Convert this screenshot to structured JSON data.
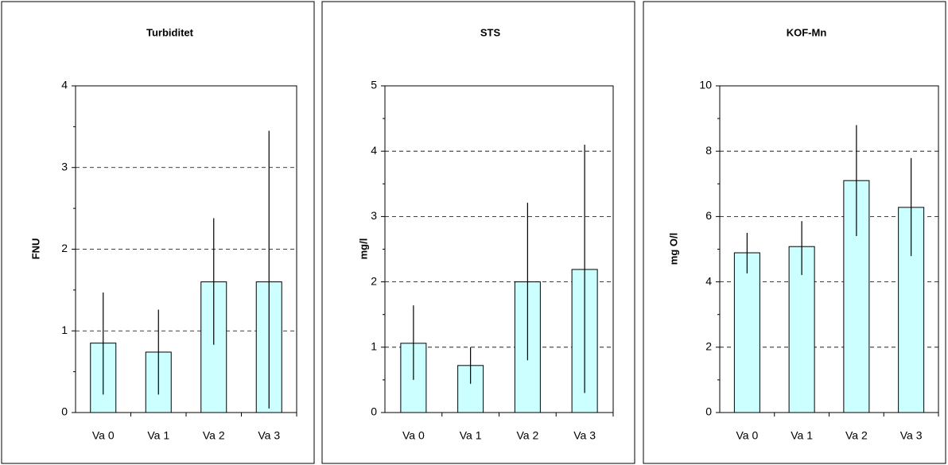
{
  "chart_data": [
    {
      "type": "bar",
      "title": "Turbiditet",
      "y_label": "FNU",
      "categories": [
        "Va 0",
        "Va 1",
        "Va 2",
        "Va 3"
      ],
      "values": [
        0.85,
        0.74,
        1.6,
        1.6
      ],
      "error_low": [
        0.22,
        0.22,
        0.83,
        0.05
      ],
      "error_high": [
        1.47,
        1.26,
        2.38,
        3.45
      ],
      "color": "#ccffff",
      "ylim": [
        0,
        4
      ],
      "yticks": [
        0,
        1,
        2,
        3,
        4
      ],
      "minor_yticks": [
        0.5,
        1.5,
        2.5,
        3.5
      ],
      "grid": true
    },
    {
      "type": "bar",
      "title": "STS",
      "y_label": "mg/l",
      "categories": [
        "Va 0",
        "Va 1",
        "Va 2",
        "Va 3"
      ],
      "values": [
        1.06,
        0.72,
        2.0,
        2.19
      ],
      "error_low": [
        0.5,
        0.44,
        0.8,
        0.3
      ],
      "error_high": [
        1.64,
        1.0,
        3.21,
        4.1
      ],
      "color": "#ccffff",
      "ylim": [
        0,
        5
      ],
      "yticks": [
        0,
        1,
        2,
        3,
        4,
        5
      ],
      "minor_yticks": [
        0.5,
        1.5,
        2.5,
        3.5,
        4.5
      ],
      "grid": true
    },
    {
      "type": "bar",
      "title": "KOF-Mn",
      "y_label": "mg O/l",
      "categories": [
        "Va 0",
        "Va 1",
        "Va 2",
        "Va 3"
      ],
      "values": [
        4.89,
        5.08,
        7.1,
        6.28
      ],
      "error_low": [
        4.26,
        4.21,
        5.4,
        4.79
      ],
      "error_high": [
        5.5,
        5.86,
        8.8,
        7.79
      ],
      "color": "#ccffff",
      "ylim": [
        0,
        10
      ],
      "yticks": [
        0,
        2,
        4,
        6,
        8,
        10
      ],
      "minor_yticks": [
        1,
        3,
        5,
        7,
        9
      ],
      "grid": true
    }
  ]
}
